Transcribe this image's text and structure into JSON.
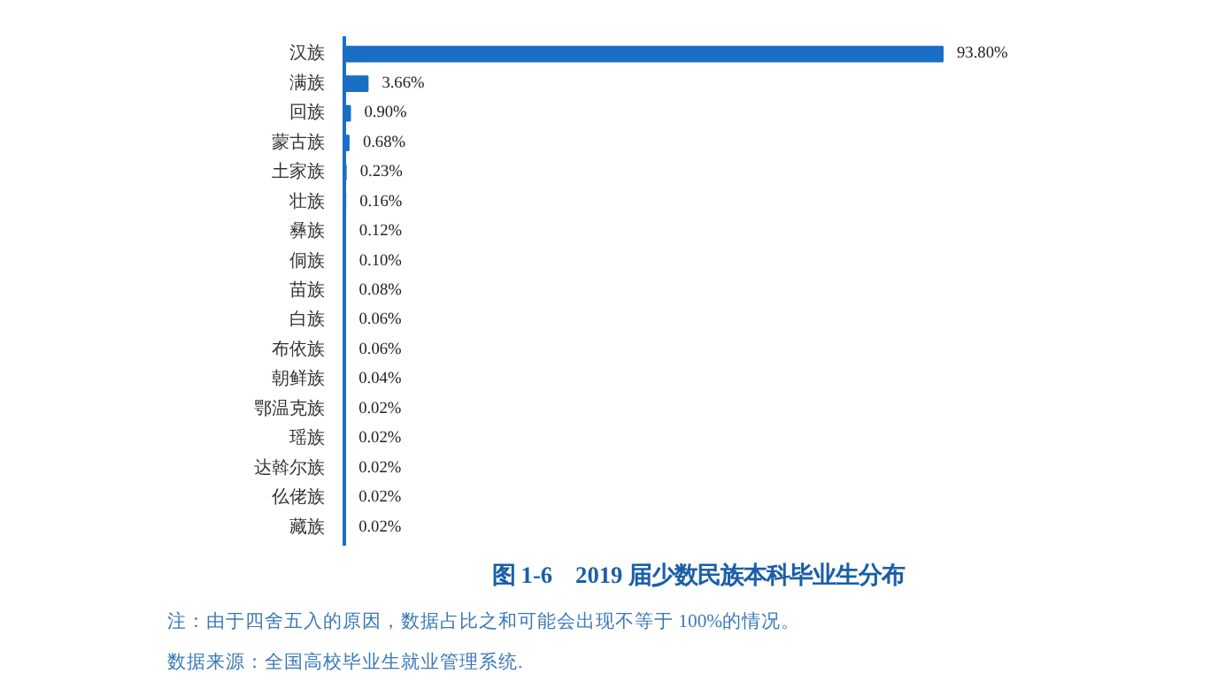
{
  "chart_data": {
    "type": "bar",
    "orientation": "horizontal",
    "title": "图 1-6　2019 届少数民族本科毕业生分布",
    "annotations": [
      "注：由于四舍五入的原因，数据占比之和可能会出现不等于 100%的情况。",
      "数据来源：全国高校毕业生就业管理系统."
    ],
    "categories": [
      "汉族",
      "满族",
      "回族",
      "蒙古族",
      "土家族",
      "壮族",
      "彝族",
      "侗族",
      "苗族",
      "白族",
      "布依族",
      "朝鲜族",
      "鄂温克族",
      "瑶族",
      "达斡尔族",
      "仫佬族",
      "藏族"
    ],
    "values": [
      93.8,
      3.66,
      0.9,
      0.68,
      0.23,
      0.16,
      0.12,
      0.1,
      0.08,
      0.06,
      0.06,
      0.04,
      0.02,
      0.02,
      0.02,
      0.02,
      0.02
    ],
    "value_labels": [
      "93.80%",
      "3.66%",
      "0.90%",
      "0.68%",
      "0.23%",
      "0.16%",
      "0.12%",
      "0.10%",
      "0.08%",
      "0.06%",
      "0.06%",
      "0.04%",
      "0.02%",
      "0.02%",
      "0.02%",
      "0.02%",
      "0.02%"
    ],
    "color": "#1a6fc4"
  }
}
